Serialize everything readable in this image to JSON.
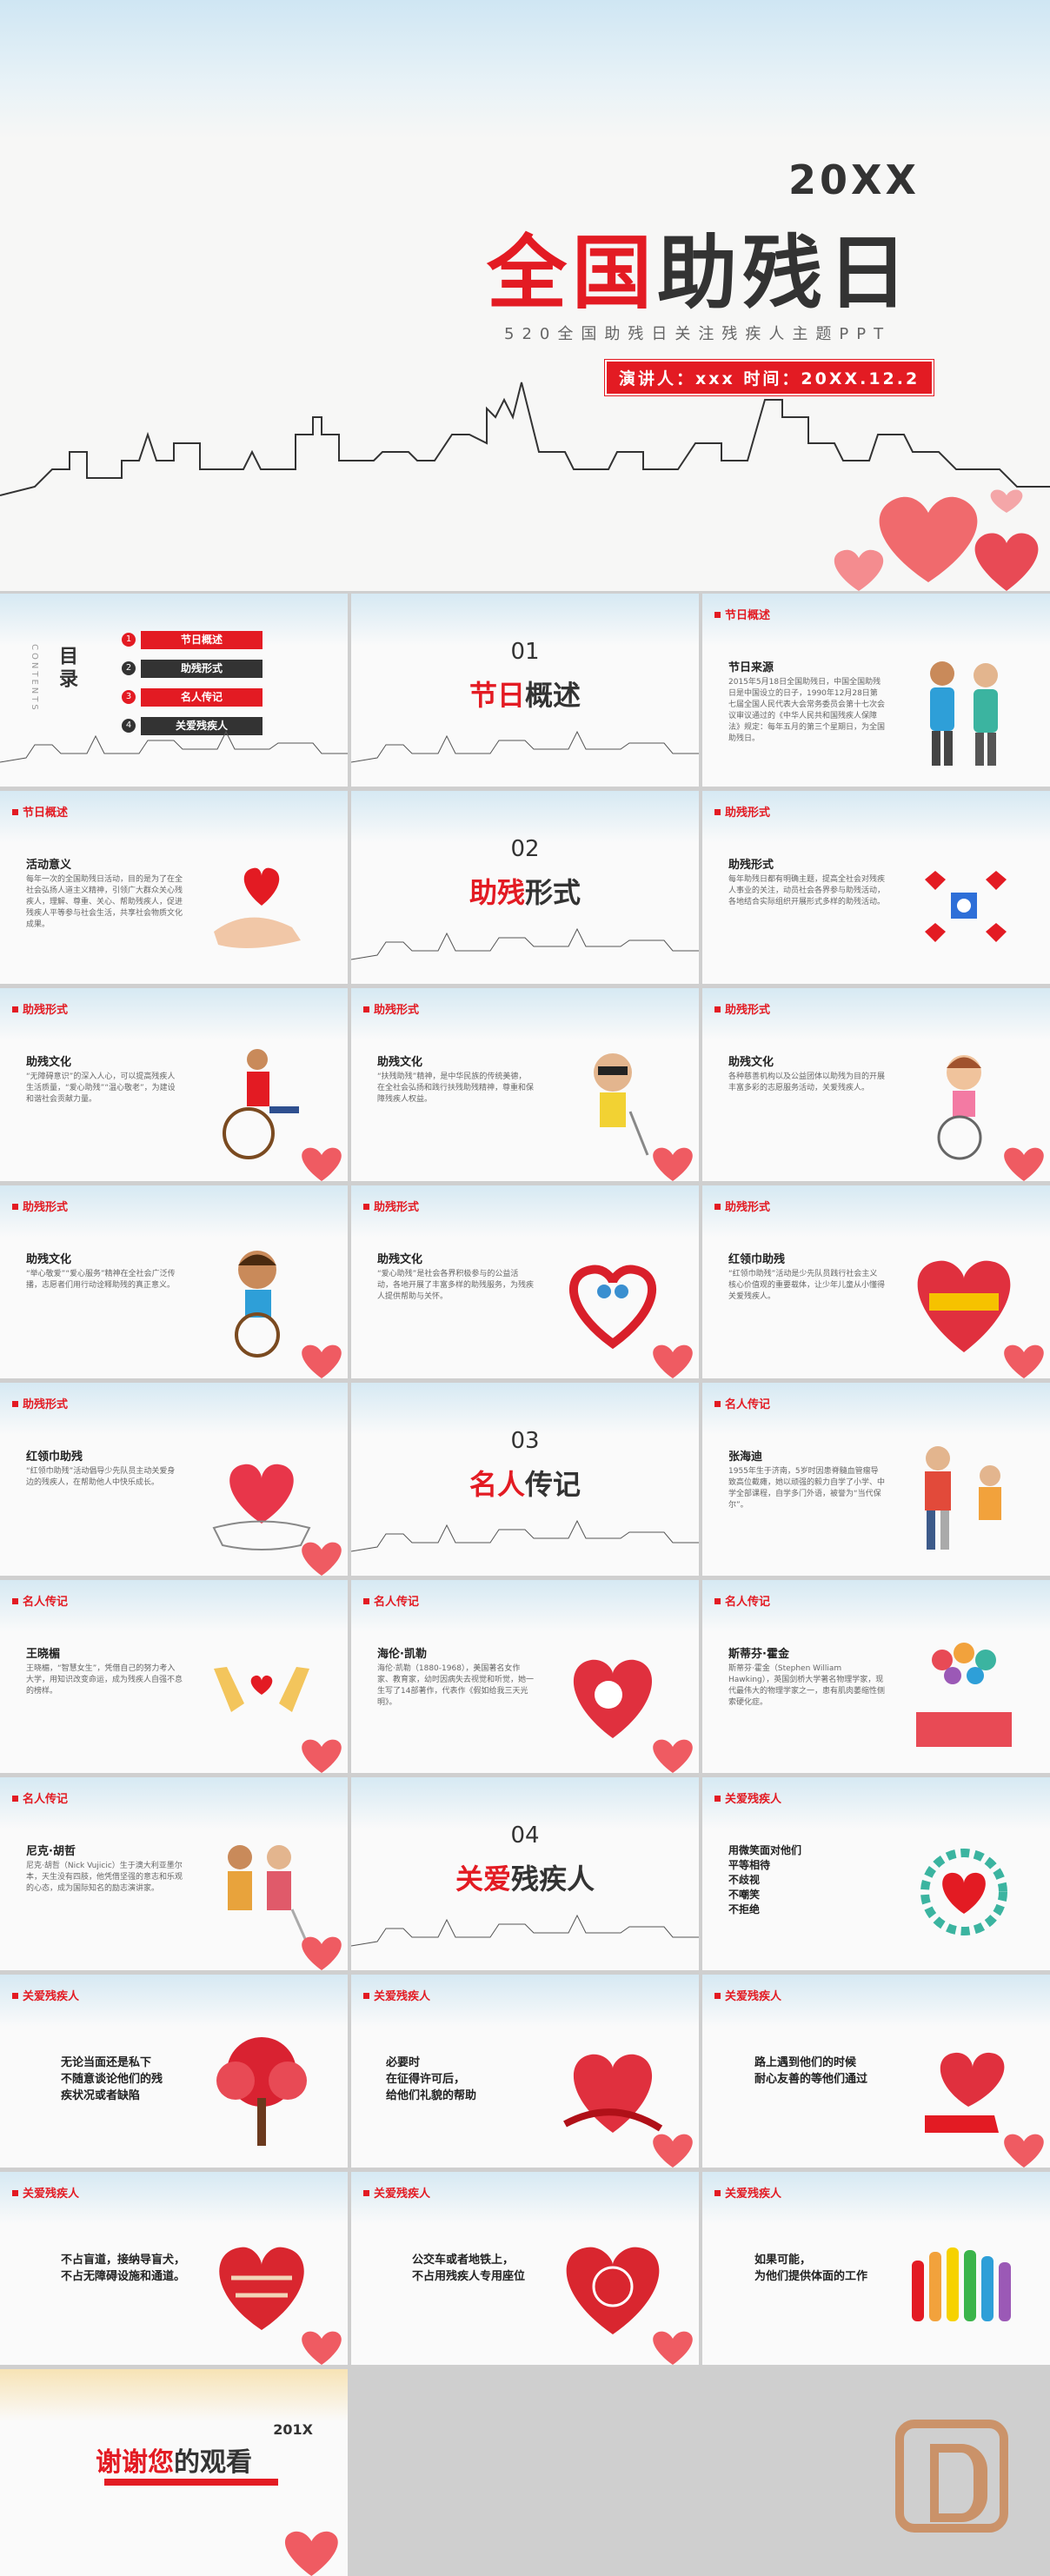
{
  "cover": {
    "year": "20XX",
    "title_red": "全国",
    "title_dark": "助残日",
    "subtitle": "520全国助残日关注残疾人主题PPT",
    "presenter": "演讲人：xxx  时间：20XX.12.2"
  },
  "toc": {
    "title": "目录",
    "en": "CONTENTS",
    "items": [
      {
        "num": "1",
        "label": "节日概述"
      },
      {
        "num": "2",
        "label": "助残形式"
      },
      {
        "num": "3",
        "label": "名人传记"
      },
      {
        "num": "4",
        "label": "关爱残疾人"
      }
    ]
  },
  "sections": [
    {
      "num": "01",
      "red": "节日",
      "dark": "概述"
    },
    {
      "num": "02",
      "red": "助残",
      "dark": "形式"
    },
    {
      "num": "03",
      "red": "名人",
      "dark": "传记"
    },
    {
      "num": "04",
      "red": "关爱",
      "dark": "残疾人"
    }
  ],
  "slides": [
    {
      "tag": "节日概述",
      "heading": "节日来源",
      "text": "2015年5月18日全国助残日，中国全国助残日是中国设立的日子，1990年12月28日第七届全国人民代表大会常务委员会第十七次会议审议通过的《中华人民共和国残疾人保障法》规定：每年五月的第三个星期日，为全国助残日。"
    },
    {
      "tag": "节日概述",
      "heading": "活动意义",
      "text": "每年一次的全国助残日活动，目的是为了在全社会弘扬人道主义精神，引领广大群众关心残疾人，理解、尊重、关心、帮助残疾人，促进残疾人平等参与社会生活，共享社会物质文化成果。"
    },
    {
      "tag": "助残形式",
      "heading": "助残形式",
      "text": "每年助残日都有明确主题，提高全社会对残疾人事业的关注，动员社会各界参与助残活动，各地结合实际组织开展形式多样的助残活动。"
    },
    {
      "tag": "助残形式",
      "heading": "助残文化",
      "text": "“无障碍意识”的深入人心，可以提高残疾人生活质量，“爱心助残”“温心敬老”，为建设和谐社会贡献力量。"
    },
    {
      "tag": "助残形式",
      "heading": "助残文化",
      "text": "“扶残助残”精神，是中华民族的传统美德，在全社会弘扬和践行扶残助残精神，尊重和保障残疾人权益。"
    },
    {
      "tag": "助残形式",
      "heading": "助残文化",
      "text": "各种慈善机构以及公益团体以助残为目的开展丰富多彩的志愿服务活动，关爱残疾人。"
    },
    {
      "tag": "助残形式",
      "heading": "助残文化",
      "text": "“举心敬爱”“爱心服务”精神在全社会广泛传播，志愿者们用行动诠释助残的真正意义。"
    },
    {
      "tag": "助残形式",
      "heading": "助残文化",
      "text": "“爱心助残”是社会各界积极参与的公益活动，各地开展了丰富多样的助残服务，为残疾人提供帮助与关怀。"
    },
    {
      "tag": "助残形式",
      "heading": "红领巾助残",
      "text": "“红领巾助残”活动是少先队员践行社会主义核心价值观的重要载体，让少年儿童从小懂得关爱残疾人。"
    },
    {
      "tag": "助残形式",
      "heading": "红领巾助残",
      "text": "“红领巾助残”活动倡导少先队员主动关爱身边的残疾人，在帮助他人中快乐成长。"
    },
    {
      "tag": "名人传记",
      "heading": "张海迪",
      "text": "1955年生于济南，5岁时因患脊髓血管瘤导致高位截瘫，她以顽强的毅力自学了小学、中学全部课程，自学多门外语，被誉为“当代保尔”。"
    },
    {
      "tag": "名人传记",
      "heading": "王晓楣",
      "text": "王晓楣，“智慧女生”，凭借自己的努力考入大学，用知识改变命运，成为残疾人自强不息的榜样。"
    },
    {
      "tag": "名人传记",
      "heading": "海伦·凯勒",
      "text": "海伦·凯勒（1880-1968），美国著名女作家、教育家，幼时因病失去视觉和听觉，她一生写了14部著作，代表作《假如给我三天光明》。"
    },
    {
      "tag": "名人传记",
      "heading": "斯蒂芬·霍金",
      "text": "斯蒂芬·霍金（Stephen William Hawking），英国剑桥大学著名物理学家，现代最伟大的物理学家之一，患有肌肉萎缩性侧索硬化症。"
    },
    {
      "tag": "名人传记",
      "heading": "尼克·胡哲",
      "text": "尼克·胡哲（Nick Vujicic）生于澳大利亚墨尔本，天生没有四肢，他凭借坚强的意志和乐观的心态，成为国际知名的励志演讲家。"
    },
    {
      "tag": "关爱残疾人",
      "heading": "",
      "text": "用微笑面对他们\n平等相待\n不歧视\n不嘲笑\n不拒绝"
    },
    {
      "tag": "关爱残疾人",
      "heading": "",
      "text": "无论当面还是私下\n不随意谈论他们的残\n疾状况或者缺陷"
    },
    {
      "tag": "关爱残疾人",
      "heading": "",
      "text": "必要时\n在征得许可后，\n给他们礼貌的帮助"
    },
    {
      "tag": "关爱残疾人",
      "heading": "",
      "text": "路上遇到他们的时候\n耐心友善的等他们通过"
    },
    {
      "tag": "关爱残疾人",
      "heading": "",
      "text": "不占盲道，接纳导盲犬，\n不占无障碍设施和通道。"
    },
    {
      "tag": "关爱残疾人",
      "heading": "",
      "text": "公交车或者地铁上，\n不占用残疾人专用座位"
    },
    {
      "tag": "关爱残疾人",
      "heading": "",
      "text": "如果可能，\n为他们提供体面的工作"
    }
  ],
  "thanks": {
    "year": "201X",
    "red": "谢谢您",
    "dark": "的观看"
  },
  "colors": {
    "accent": "#e31b23",
    "dark": "#333333",
    "sky": "#cfe6f3"
  }
}
